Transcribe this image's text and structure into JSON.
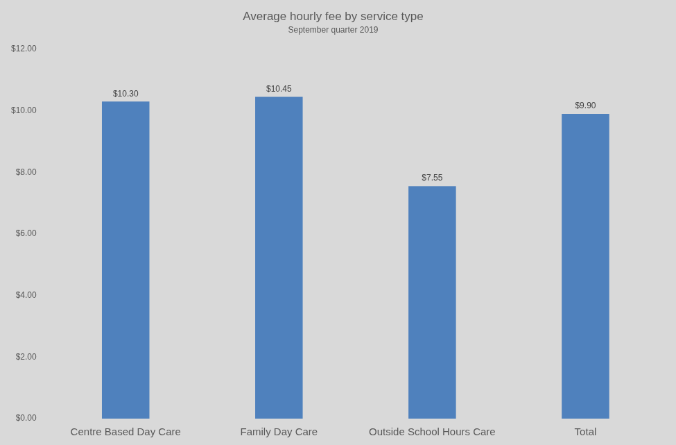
{
  "chart_data": {
    "type": "bar",
    "title": "Average hourly fee by service type",
    "subtitle": "September quarter 2019",
    "categories": [
      "Centre Based Day Care",
      "Family Day Care",
      "Outside School Hours Care",
      "Total"
    ],
    "values": [
      10.3,
      10.45,
      7.55,
      9.9
    ],
    "value_labels": [
      "$10.30",
      "$10.45",
      "$7.55",
      "$9.90"
    ],
    "color": "#4f81bd",
    "ylim": [
      0,
      12
    ],
    "yticks": [
      {
        "value": 0,
        "label": "$0.00"
      },
      {
        "value": 2,
        "label": "$2.00"
      },
      {
        "value": 4,
        "label": "$4.00"
      },
      {
        "value": 6,
        "label": "$6.00"
      },
      {
        "value": 8,
        "label": "$8.00"
      },
      {
        "value": 10,
        "label": "$10.00"
      },
      {
        "value": 12,
        "label": "$12.00"
      }
    ],
    "grid": false,
    "data_labels": true
  }
}
